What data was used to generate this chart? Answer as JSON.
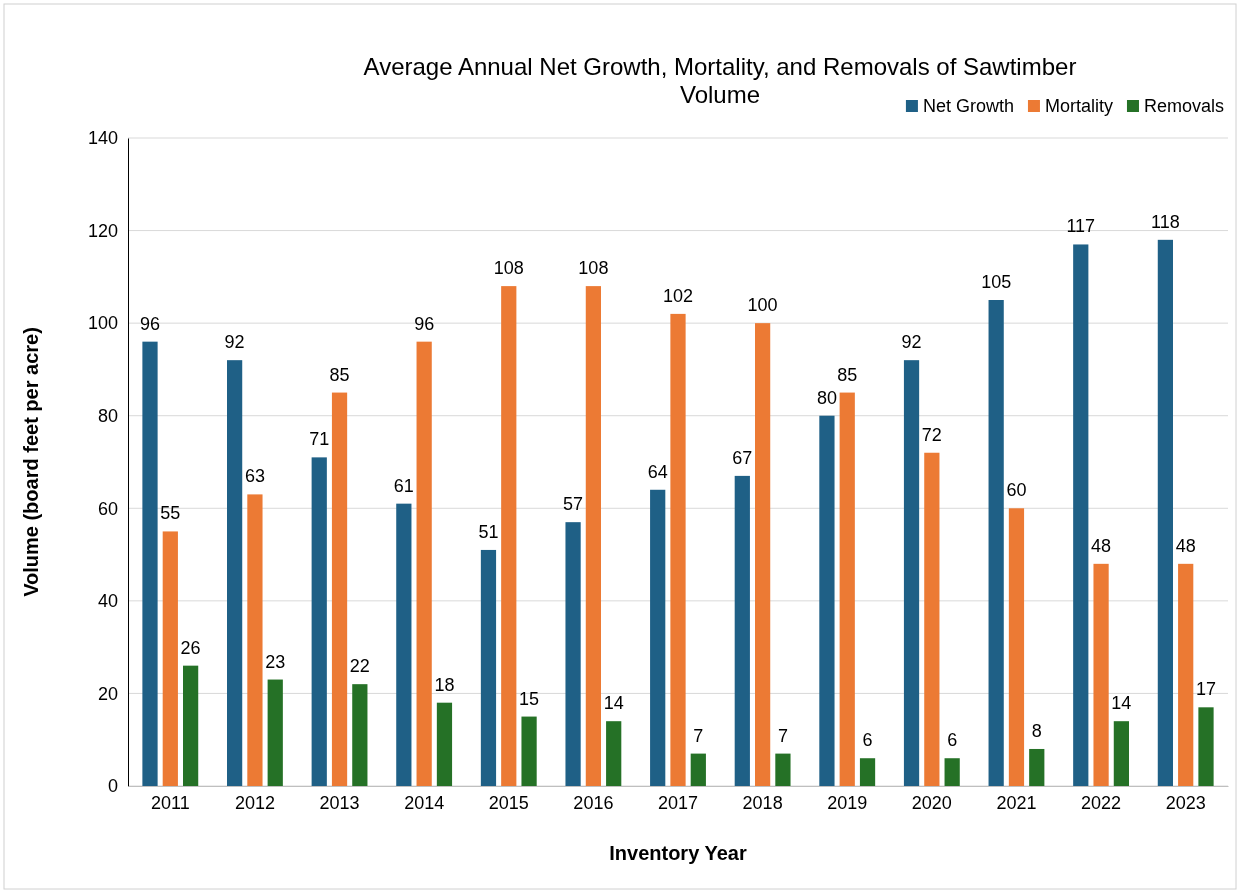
{
  "chart_data": {
    "type": "bar",
    "title": "Average Annual Net Growth, Mortality, and Removals of Sawtimber Volume",
    "xlabel": "Inventory Year",
    "ylabel": "Volume (board feet per acre)",
    "categories": [
      "2011",
      "2012",
      "2013",
      "2014",
      "2015",
      "2016",
      "2017",
      "2018",
      "2019",
      "2020",
      "2021",
      "2022",
      "2023"
    ],
    "series": [
      {
        "name": "Net Growth",
        "color": "#1f6086",
        "values": [
          96,
          92,
          71,
          61,
          51,
          57,
          64,
          67,
          80,
          92,
          105,
          117,
          118
        ]
      },
      {
        "name": "Mortality",
        "color": "#ec7a34",
        "values": [
          55,
          63,
          85,
          96,
          108,
          108,
          102,
          100,
          85,
          72,
          60,
          48,
          48
        ]
      },
      {
        "name": "Removals",
        "color": "#257126",
        "values": [
          26,
          23,
          22,
          18,
          15,
          14,
          7,
          7,
          6,
          6,
          8,
          14,
          17
        ]
      }
    ],
    "ylim": [
      0,
      140
    ],
    "yticks": [
      0,
      20,
      40,
      60,
      80,
      100,
      120,
      140
    ],
    "grid": "y",
    "legend": "top right",
    "data_labels": true
  }
}
